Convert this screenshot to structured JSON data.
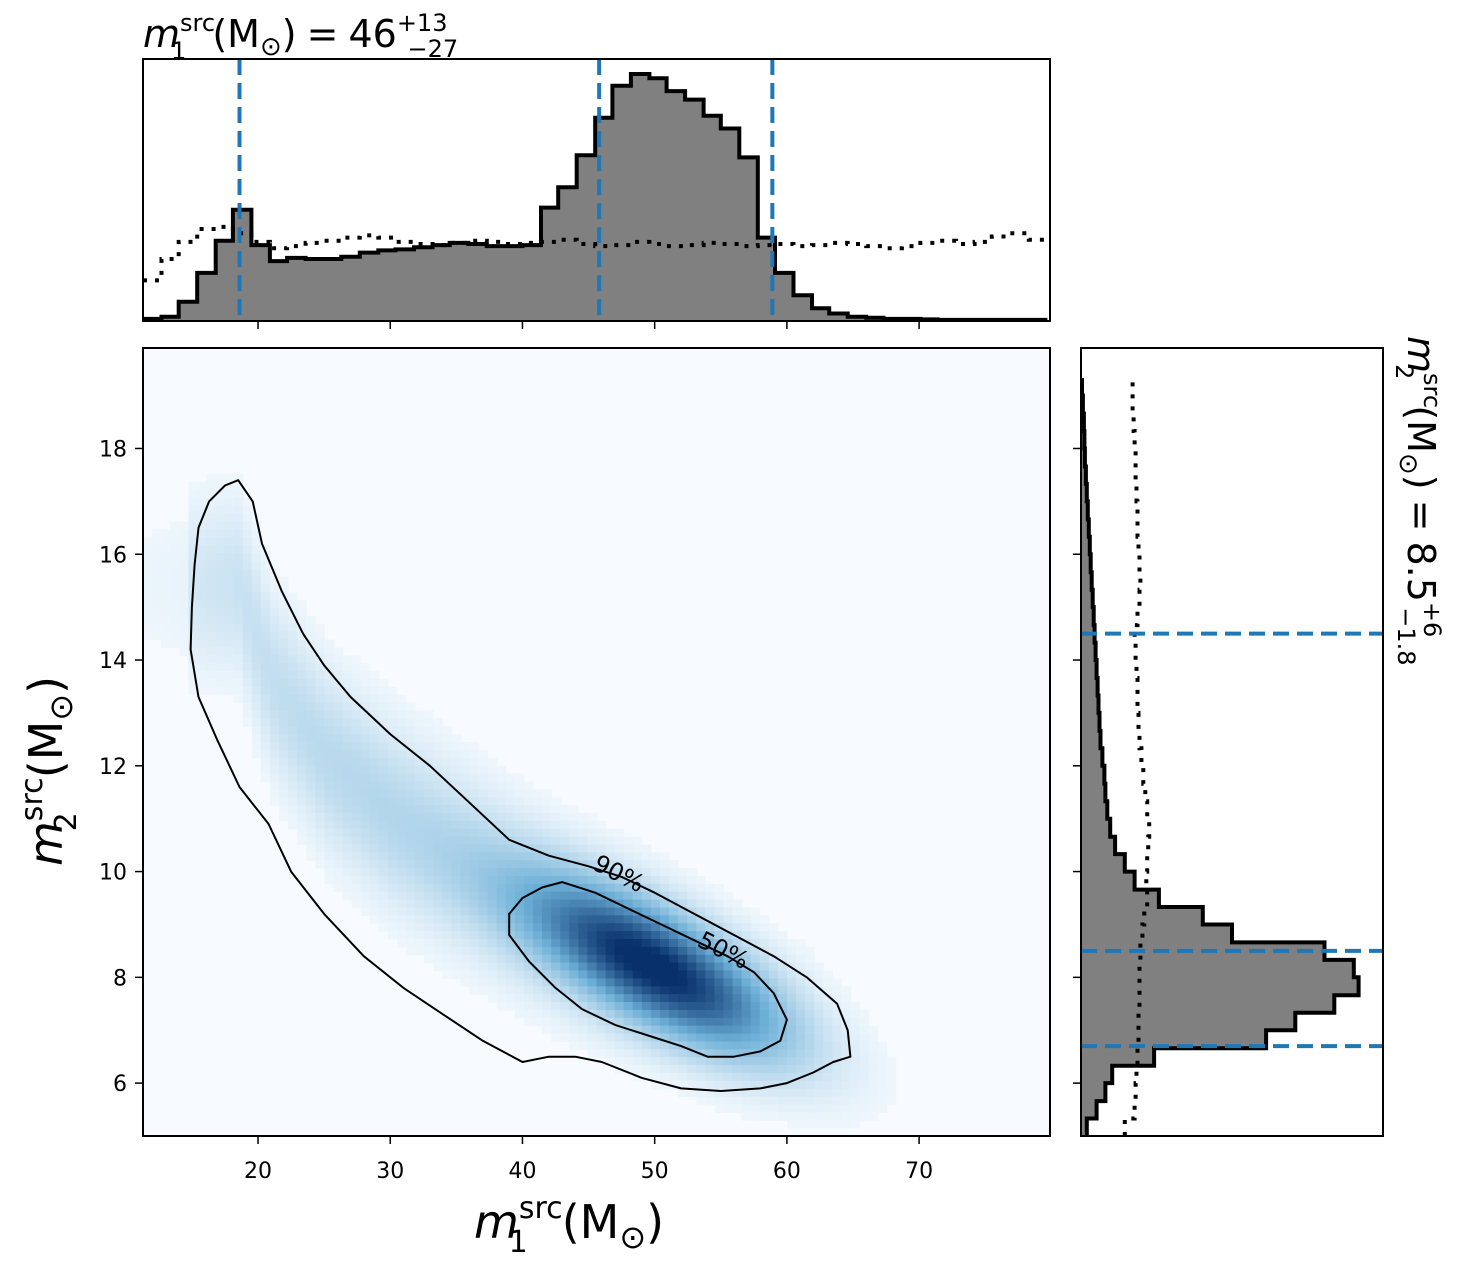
{
  "chart_data": {
    "type": "corner",
    "colors": {
      "hist_fill": "#808080",
      "hist_edge": "#000000",
      "quantile_line": "#1f77b4",
      "prior_line": "#000000",
      "cmap_low": "#f7fbff",
      "cmap_high": "#08306b"
    },
    "top_title": {
      "symbol": "m",
      "sup": "src",
      "sub": "1",
      "unit": "(M",
      "unit_sub": "⊙",
      "unit_close": ")",
      "equals": "=",
      "median": "46",
      "plus": "+13",
      "minus": "−27"
    },
    "right_title": {
      "symbol": "m",
      "sup": "src",
      "sub": "2",
      "unit": "(M",
      "unit_sub": "⊙",
      "unit_close": ")",
      "equals": "=",
      "median": "8.5",
      "plus": "+6",
      "minus": "−1.8"
    },
    "xlabel": {
      "symbol": "m",
      "sup": "src",
      "sub": "1",
      "unit": "(M",
      "unit_sub": "⊙",
      "unit_close": ")"
    },
    "ylabel": {
      "symbol": "m",
      "sup": "src",
      "sub": "2",
      "unit": "(M",
      "unit_sub": "⊙",
      "unit_close": ")"
    },
    "xlim": [
      11.3,
      79.9
    ],
    "ylim": [
      5.0,
      19.9
    ],
    "xticks": [
      20,
      30,
      40,
      50,
      60,
      70
    ],
    "yticks": [
      6,
      8,
      10,
      12,
      14,
      16,
      18
    ],
    "x_quantiles": [
      18.6,
      45.8,
      58.9
    ],
    "y_quantiles": [
      6.7,
      8.5,
      14.5
    ],
    "m1_hist_edges": [
      11.3,
      12.7,
      14.0,
      15.4,
      16.8,
      18.1,
      19.5,
      20.9,
      22.2,
      23.6,
      25.0,
      26.3,
      27.7,
      29.1,
      30.4,
      31.8,
      33.2,
      34.5,
      35.9,
      37.3,
      38.6,
      40.0,
      41.4,
      42.7,
      44.1,
      45.5,
      46.8,
      48.2,
      49.6,
      50.9,
      52.3,
      53.7,
      55.0,
      56.4,
      57.8,
      59.1,
      60.5,
      61.9,
      63.2,
      64.6,
      66.0,
      67.3,
      68.7,
      70.1,
      71.4,
      72.8,
      74.2,
      75.5,
      76.9,
      78.3,
      79.7
    ],
    "m1_hist": [
      0.2,
      0.4,
      1.8,
      4.5,
      7.5,
      10.4,
      7.1,
      5.6,
      5.9,
      5.8,
      5.8,
      6.0,
      6.4,
      6.6,
      6.7,
      6.9,
      7.1,
      7.3,
      7.2,
      7.0,
      7.0,
      7.1,
      10.6,
      12.5,
      15.5,
      19.0,
      22.0,
      23.1,
      22.7,
      21.5,
      20.7,
      19.2,
      18.0,
      15.3,
      7.8,
      4.5,
      2.4,
      1.2,
      0.7,
      0.4,
      0.3,
      0.2,
      0.2,
      0.15,
      0.1,
      0.1,
      0.1,
      0.1,
      0.1,
      0.1
    ],
    "m1_prior": [
      3.8,
      5.8,
      7.4,
      8.6,
      8.8,
      8.2,
      7.4,
      6.8,
      7.0,
      7.3,
      7.5,
      7.8,
      8.0,
      7.8,
      7.4,
      7.2,
      7.1,
      7.3,
      7.5,
      7.4,
      7.2,
      7.3,
      7.4,
      7.6,
      7.2,
      7.0,
      7.1,
      7.4,
      7.2,
      7.0,
      7.1,
      7.3,
      7.2,
      7.0,
      7.1,
      7.2,
      7.0,
      7.1,
      7.3,
      7.2,
      7.0,
      6.8,
      7.0,
      7.3,
      7.5,
      7.2,
      7.4,
      7.9,
      8.2,
      7.6
    ],
    "m2_hist_edges": [
      5.0,
      5.33,
      5.66,
      6.0,
      6.33,
      6.66,
      7.0,
      7.33,
      7.66,
      8.0,
      8.33,
      8.66,
      9.0,
      9.33,
      9.66,
      10.0,
      10.33,
      10.66,
      11.0,
      11.33,
      11.66,
      12.0,
      12.33,
      12.66,
      13.0,
      13.33,
      13.66,
      14.0,
      14.33,
      14.66,
      15.0,
      15.33,
      15.66,
      16.0,
      16.33,
      16.66,
      17.0,
      17.33,
      17.66,
      18.0,
      18.33,
      18.66,
      19.0,
      19.33
    ],
    "m2_hist": [
      0.6,
      1.6,
      2.5,
      3.2,
      7.5,
      19.0,
      22.0,
      26.0,
      28.5,
      28.0,
      25.0,
      15.5,
      12.5,
      8.0,
      5.5,
      4.5,
      3.5,
      3.0,
      2.7,
      2.5,
      2.4,
      2.2,
      2.0,
      1.9,
      1.8,
      1.7,
      1.6,
      1.5,
      1.4,
      1.3,
      1.2,
      1.1,
      1.0,
      0.9,
      0.8,
      0.7,
      0.6,
      0.5,
      0.4,
      0.35,
      0.3,
      0.2,
      0.1
    ],
    "m2_prior": [
      4.5,
      5.5,
      5.6,
      5.7,
      5.8,
      5.9,
      5.9,
      6.0,
      6.0,
      6.0,
      6.1,
      6.3,
      6.5,
      6.8,
      6.7,
      6.8,
      6.9,
      7.0,
      6.8,
      6.6,
      6.4,
      6.2,
      6.0,
      5.9,
      5.8,
      5.8,
      5.7,
      5.6,
      5.5,
      5.8,
      6.0,
      6.1,
      6.0,
      5.9,
      5.8,
      5.8,
      5.7,
      5.6,
      5.6,
      5.5,
      5.4,
      5.3,
      5.3
    ],
    "contour_90": [
      [
        15.5,
        16.5
      ],
      [
        16.3,
        17.0
      ],
      [
        17.5,
        17.3
      ],
      [
        18.5,
        17.4
      ],
      [
        19.6,
        17.0
      ],
      [
        20.3,
        16.2
      ],
      [
        21.8,
        15.3
      ],
      [
        23.4,
        14.5
      ],
      [
        25.0,
        13.9
      ],
      [
        27.0,
        13.3
      ],
      [
        30.0,
        12.6
      ],
      [
        33.0,
        12.0
      ],
      [
        36.0,
        11.3
      ],
      [
        39.0,
        10.6
      ],
      [
        42.0,
        10.3
      ],
      [
        45.0,
        10.1
      ],
      [
        47.5,
        9.9
      ],
      [
        50.0,
        9.6
      ],
      [
        53.0,
        9.2
      ],
      [
        56.0,
        8.8
      ],
      [
        59.0,
        8.4
      ],
      [
        61.5,
        8.0
      ],
      [
        63.8,
        7.5
      ],
      [
        64.6,
        7.0
      ],
      [
        64.8,
        6.5
      ],
      [
        63.5,
        6.4
      ],
      [
        62.0,
        6.2
      ],
      [
        60.0,
        6.0
      ],
      [
        58.0,
        5.9
      ],
      [
        55.0,
        5.85
      ],
      [
        52.0,
        5.9
      ],
      [
        49.0,
        6.1
      ],
      [
        46.0,
        6.4
      ],
      [
        44.0,
        6.5
      ],
      [
        42.0,
        6.5
      ],
      [
        40.0,
        6.4
      ],
      [
        37.0,
        6.8
      ],
      [
        34.0,
        7.3
      ],
      [
        31.0,
        7.8
      ],
      [
        28.0,
        8.4
      ],
      [
        25.0,
        9.2
      ],
      [
        22.5,
        10.0
      ],
      [
        20.8,
        10.9
      ],
      [
        18.6,
        11.6
      ],
      [
        16.9,
        12.5
      ],
      [
        15.5,
        13.3
      ],
      [
        14.9,
        14.2
      ],
      [
        15.0,
        15.0
      ],
      [
        15.2,
        15.8
      ],
      [
        15.5,
        16.5
      ]
    ],
    "contour_50": [
      [
        39.0,
        9.2
      ],
      [
        40.0,
        9.5
      ],
      [
        41.5,
        9.7
      ],
      [
        43.0,
        9.8
      ],
      [
        45.5,
        9.6
      ],
      [
        48.0,
        9.3
      ],
      [
        50.5,
        9.0
      ],
      [
        53.0,
        8.7
      ],
      [
        55.5,
        8.4
      ],
      [
        57.5,
        8.1
      ],
      [
        59.0,
        7.7
      ],
      [
        60.0,
        7.2
      ],
      [
        59.5,
        6.8
      ],
      [
        58.0,
        6.6
      ],
      [
        56.0,
        6.5
      ],
      [
        54.0,
        6.5
      ],
      [
        52.0,
        6.7
      ],
      [
        49.5,
        6.9
      ],
      [
        47.0,
        7.1
      ],
      [
        44.5,
        7.4
      ],
      [
        42.5,
        7.8
      ],
      [
        40.5,
        8.3
      ],
      [
        39.0,
        8.8
      ],
      [
        39.0,
        9.2
      ]
    ],
    "density_ridge": [
      [
        18.5,
        15.4
      ],
      [
        21.0,
        13.6
      ],
      [
        25.0,
        12.2
      ],
      [
        30.0,
        11.1
      ],
      [
        35.0,
        10.3
      ],
      [
        40.0,
        9.5
      ],
      [
        45.0,
        8.8
      ],
      [
        47.5,
        8.5
      ],
      [
        50.0,
        8.2
      ],
      [
        53.0,
        7.8
      ],
      [
        56.0,
        7.4
      ]
    ],
    "contour_labels": [
      {
        "text": "90%",
        "x": 47.3,
        "y": 9.96,
        "angle": 27
      },
      {
        "text": "50%",
        "x": 55.2,
        "y": 8.51,
        "angle": 27
      }
    ]
  }
}
